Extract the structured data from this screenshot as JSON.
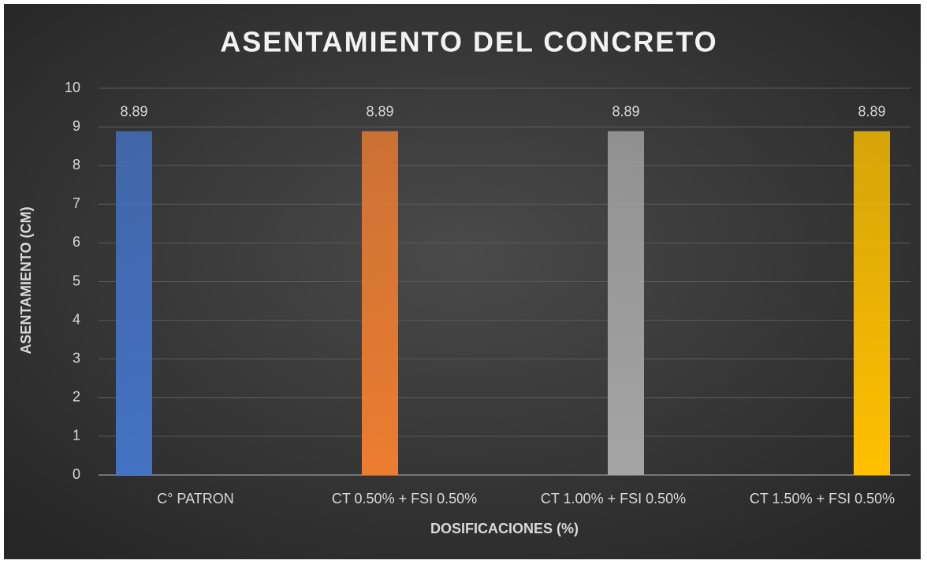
{
  "chart_data": {
    "type": "bar",
    "title": "ASENTAMIENTO DEL CONCRETO",
    "x_label": "DOSIFICACIONES (%)",
    "y_label": "ASENTAMIENTO (CM)",
    "categories": [
      "C° PATRON",
      "CT 0.50% + FSI 0.50%",
      "CT 1.00% + FSI 0.50%",
      "CT 1.50% + FSI 0.50%"
    ],
    "values": [
      8.89,
      8.89,
      8.89,
      8.89
    ],
    "colors": [
      "#4472c4",
      "#ed7d31",
      "#a5a5a5",
      "#ffc000"
    ],
    "ylim": [
      0,
      10
    ],
    "yticks": [
      0,
      1,
      2,
      3,
      4,
      5,
      6,
      7,
      8,
      9,
      10
    ],
    "grid": true
  }
}
